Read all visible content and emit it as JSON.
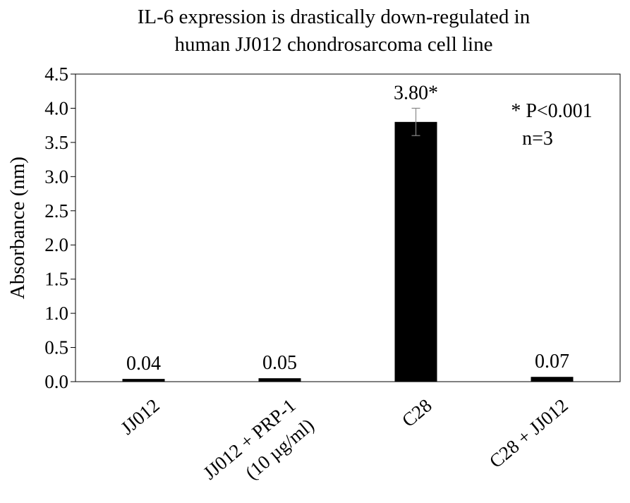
{
  "chart_data": {
    "type": "bar",
    "title_lines": [
      "IL-6 expression is drastically down-regulated in",
      "human JJ012 chondrosarcoma cell line"
    ],
    "ylabel": "Absorbance (nm)",
    "xlabel": "",
    "ylim": [
      0,
      4.5
    ],
    "yticks": [
      "0.0",
      "0.5",
      "1.0",
      "1.5",
      "2.0",
      "2.5",
      "3.0",
      "3.5",
      "4.0",
      "4.5"
    ],
    "categories": [
      [
        "JJ012"
      ],
      [
        "JJ012 + PRP-1",
        "(10 µg/ml)"
      ],
      [
        "C28"
      ],
      [
        "C28 + JJ012"
      ]
    ],
    "values": [
      0.04,
      0.05,
      3.8,
      0.07
    ],
    "error": [
      0.0,
      0.0,
      0.2,
      0.0
    ],
    "data_labels": [
      "0.04",
      "0.05",
      "3.80*",
      "0.07"
    ],
    "annotation_lines": [
      "* P<0.001",
      "n=3"
    ],
    "bar_color": "#000000",
    "grid": false,
    "legend": "none"
  }
}
